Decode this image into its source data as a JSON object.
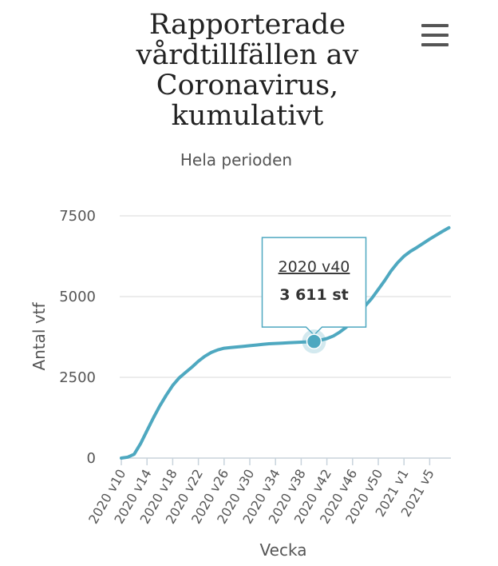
{
  "header": {
    "title": "Rapporterade\nvårdtillfällen av\nCoronavirus,\nkumulativt",
    "subtitle": "Hela perioden",
    "menu_icon": "hamburger-menu-icon"
  },
  "tooltip": {
    "week": "2020 v40",
    "value": "3 611 st"
  },
  "colors": {
    "line": "#4ea8c0",
    "grid": "#e6e6e6",
    "tooltip_border": "#4ea8c0"
  },
  "chart_data": {
    "type": "line",
    "title": "Rapporterade vårdtillfällen av Coronavirus, kumulativt",
    "subtitle": "Hela perioden",
    "xlabel": "Vecka",
    "ylabel": "Antal vtf",
    "ylim": [
      0,
      7500
    ],
    "yticks": [
      0,
      2500,
      5000,
      7500
    ],
    "grid": true,
    "xtick_labels": [
      "2020 v10",
      "2020 v14",
      "2020 v18",
      "2020 v22",
      "2020 v26",
      "2020 v30",
      "2020 v34",
      "2020 v38",
      "2020 v42",
      "2020 v46",
      "2020 v50",
      "2021 v1",
      "2021 v5"
    ],
    "series": [
      {
        "x": [
          "2020 v10",
          "2020 v11",
          "2020 v12",
          "2020 v13",
          "2020 v14",
          "2020 v15",
          "2020 v16",
          "2020 v17",
          "2020 v18",
          "2020 v19",
          "2020 v20",
          "2020 v21",
          "2020 v22",
          "2020 v23",
          "2020 v24",
          "2020 v25",
          "2020 v26",
          "2020 v27",
          "2020 v28",
          "2020 v29",
          "2020 v30",
          "2020 v31",
          "2020 v32",
          "2020 v33",
          "2020 v34",
          "2020 v35",
          "2020 v36",
          "2020 v37",
          "2020 v38",
          "2020 v39",
          "2020 v40",
          "2020 v41",
          "2020 v42",
          "2020 v43",
          "2020 v44",
          "2020 v45",
          "2020 v46",
          "2020 v47",
          "2020 v48",
          "2020 v49",
          "2020 v50",
          "2020 v51",
          "2020 v52",
          "2020 v53",
          "2021 v1",
          "2021 v2",
          "2021 v3",
          "2021 v4",
          "2021 v5",
          "2021 v6",
          "2021 v7",
          "2021 v8"
        ],
        "values": [
          0,
          30,
          120,
          450,
          850,
          1250,
          1620,
          1950,
          2250,
          2480,
          2650,
          2820,
          3000,
          3150,
          3270,
          3350,
          3400,
          3420,
          3440,
          3460,
          3480,
          3500,
          3520,
          3540,
          3550,
          3560,
          3570,
          3580,
          3590,
          3600,
          3611,
          3650,
          3700,
          3780,
          3900,
          4050,
          4250,
          4480,
          4720,
          4950,
          5220,
          5500,
          5800,
          6050,
          6250,
          6400,
          6520,
          6650,
          6780,
          6900,
          7020,
          7130
        ]
      }
    ],
    "highlight": {
      "x": "2020 v40",
      "y": 3611
    }
  }
}
